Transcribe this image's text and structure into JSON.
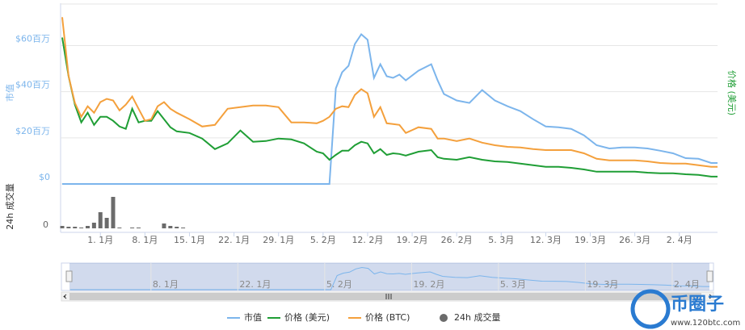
{
  "chart_data": [
    {
      "type": "line",
      "y_title": "市值",
      "y2_title": "价格 (美元)",
      "x": [
        -6,
        -5,
        -4,
        -3,
        -2,
        -1,
        0,
        1,
        2,
        3,
        4,
        5,
        6,
        7,
        8,
        9,
        10,
        11,
        12,
        14,
        16,
        18,
        20,
        22,
        24,
        26,
        28,
        30,
        32,
        34,
        35,
        36,
        37,
        38,
        39,
        40,
        41,
        42,
        43,
        44,
        45,
        46,
        47,
        48,
        50,
        52,
        53,
        54,
        56,
        58,
        60,
        62,
        64,
        66,
        68,
        70,
        72,
        74,
        76,
        78,
        80,
        82,
        84,
        86,
        88,
        90,
        92,
        94,
        96,
        97
      ],
      "xlim": [
        -6,
        97
      ],
      "xticks": [
        {
          "value": 0,
          "label": "1. 1月"
        },
        {
          "value": 7,
          "label": "8. 1月"
        },
        {
          "value": 14,
          "label": "15. 1月"
        },
        {
          "value": 21,
          "label": "22. 1月"
        },
        {
          "value": 28,
          "label": "29. 1月"
        },
        {
          "value": 35,
          "label": "5. 2月"
        },
        {
          "value": 42,
          "label": "12. 2月"
        },
        {
          "value": 49,
          "label": "19. 2月"
        },
        {
          "value": 56,
          "label": "26. 2月"
        },
        {
          "value": 63,
          "label": "5. 3月"
        },
        {
          "value": 70,
          "label": "12. 3月"
        },
        {
          "value": 77,
          "label": "19. 3月"
        },
        {
          "value": 84,
          "label": "26. 3月"
        },
        {
          "value": 91,
          "label": "2. 4月"
        }
      ],
      "ylim": [
        0,
        78
      ],
      "yticks": [
        {
          "value": 0,
          "label": "$0"
        },
        {
          "value": 20,
          "label": "$20百万"
        },
        {
          "value": 40,
          "label": "$40百万"
        },
        {
          "value": 60,
          "label": "$60百万"
        }
      ],
      "y2lim": [
        0,
        78
      ],
      "grid": true,
      "legend": "bottom",
      "series": [
        {
          "name": "市值",
          "color": "#7cb5ec",
          "values": [
            0,
            0,
            0,
            0,
            0,
            0,
            0,
            0,
            0,
            0,
            0,
            0,
            0,
            0,
            0,
            0,
            0,
            0,
            0,
            0,
            0,
            0,
            0,
            0,
            0,
            0,
            0,
            0,
            0,
            0,
            0,
            0,
            41.4,
            48.4,
            51.2,
            60.7,
            64.9,
            62.5,
            46.0,
            51.9,
            46.7,
            46.0,
            47.4,
            44.9,
            49.1,
            51.9,
            44.9,
            39.0,
            36.2,
            35.1,
            40.7,
            36.2,
            33.7,
            31.6,
            28.1,
            24.9,
            24.6,
            23.9,
            21.1,
            16.8,
            15.4,
            15.8,
            15.8,
            15.4,
            14.4,
            13.3,
            11.2,
            10.9,
            9.1,
            9.1
          ]
        },
        {
          "name": "价格 (美元)",
          "color": "#1f9e35",
          "axis": "y2",
          "values": [
            63.5,
            46.7,
            34.4,
            26.7,
            30.9,
            25.6,
            29.1,
            29.1,
            27.4,
            24.9,
            23.9,
            32.6,
            26.7,
            27.4,
            27.4,
            31.6,
            28.1,
            24.6,
            22.8,
            22.1,
            19.7,
            15.1,
            17.6,
            23.2,
            18.3,
            18.6,
            19.7,
            19.3,
            17.6,
            14.0,
            13.3,
            10.5,
            12.6,
            14.4,
            14.4,
            16.8,
            18.3,
            17.6,
            13.3,
            15.1,
            12.6,
            13.3,
            13.0,
            12.3,
            14.0,
            14.7,
            11.6,
            10.9,
            10.5,
            11.6,
            10.5,
            9.8,
            9.5,
            8.8,
            8.1,
            7.4,
            7.4,
            7.0,
            6.3,
            5.3,
            5.3,
            5.3,
            5.3,
            4.9,
            4.6,
            4.6,
            4.2,
            3.9,
            3.2,
            3.2
          ]
        },
        {
          "name": "价格 (BTC)",
          "color": "#f4a03c",
          "axis": "y2",
          "values": [
            72.3,
            46.7,
            35.1,
            29.1,
            33.7,
            30.9,
            35.5,
            36.9,
            36.2,
            31.9,
            34.4,
            37.9,
            32.6,
            27.4,
            28.1,
            33.7,
            35.5,
            32.6,
            30.9,
            28.1,
            24.9,
            25.6,
            32.6,
            33.3,
            34.0,
            34.0,
            33.3,
            26.7,
            26.7,
            26.3,
            27.4,
            29.1,
            32.6,
            33.7,
            33.3,
            38.6,
            41.1,
            39.3,
            29.1,
            33.3,
            26.3,
            26.0,
            25.6,
            22.1,
            24.6,
            23.9,
            19.7,
            19.7,
            18.6,
            19.7,
            17.9,
            16.8,
            16.1,
            15.8,
            15.1,
            14.7,
            14.7,
            14.7,
            13.3,
            10.9,
            10.2,
            10.2,
            10.2,
            9.8,
            9.1,
            8.8,
            8.8,
            8.1,
            7.4,
            7.4
          ]
        }
      ]
    },
    {
      "type": "bar",
      "y_title": "24h 成交量",
      "x": [
        -6,
        -5,
        -4,
        -3,
        -2,
        -1,
        0,
        1,
        2,
        3,
        5,
        6,
        10,
        11,
        12,
        13
      ],
      "xlim": [
        -6,
        97
      ],
      "ylim": [
        0,
        45
      ],
      "yticks": [
        0
      ],
      "series": [
        {
          "name": "24h 成交量",
          "color": "#6b6b6b",
          "values": [
            3,
            2,
            2,
            1,
            3,
            7,
            20,
            13,
            39,
            1,
            1,
            1,
            6,
            3,
            2,
            1
          ]
        }
      ]
    }
  ],
  "watermark": {
    "brand": "币圈子",
    "url": "www.120btc.com"
  }
}
